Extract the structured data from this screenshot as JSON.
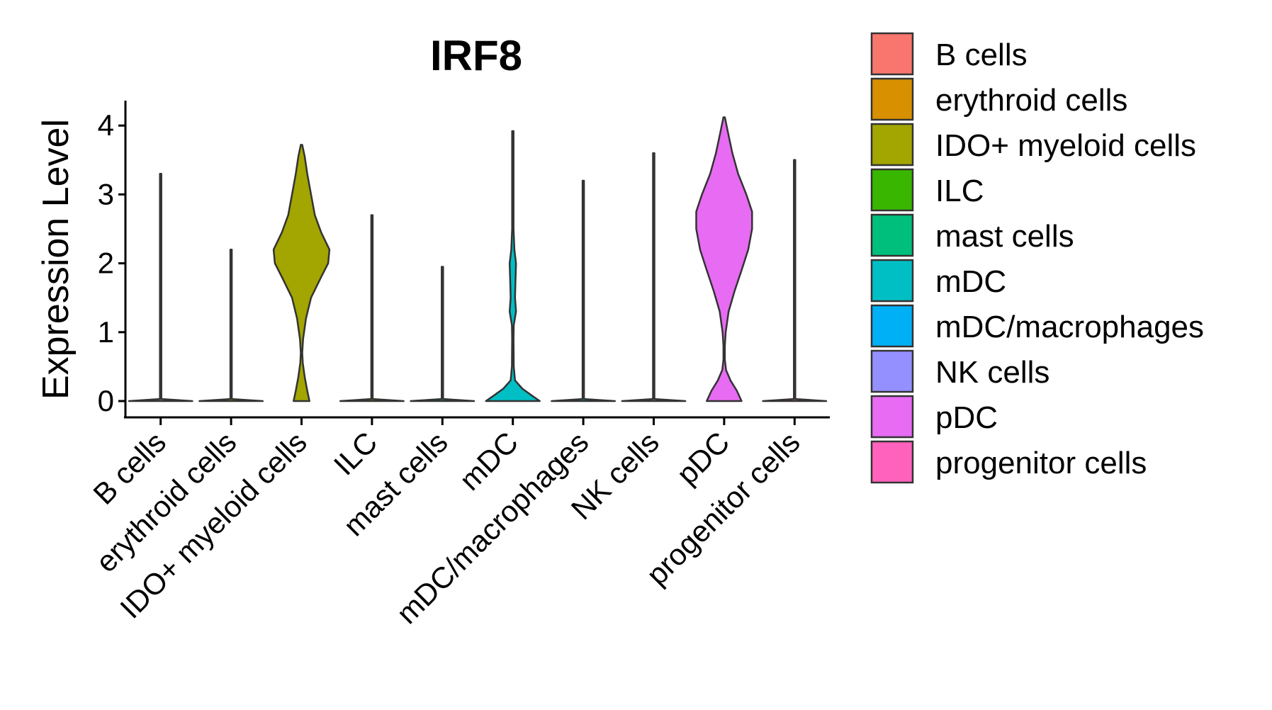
{
  "chart_data": {
    "type": "violin",
    "title": "IRF8",
    "xlabel": "",
    "ylabel": "Expression Level",
    "ylim": [
      -0.15,
      4.35
    ],
    "yticks": [
      0,
      1,
      2,
      3,
      4
    ],
    "grid": false,
    "legend_position": "right",
    "categories": [
      "B cells",
      "erythroid cells",
      "IDO+ myeloid cells",
      "ILC",
      "mast cells",
      "mDC",
      "mDC/macrophages",
      "NK cells",
      "pDC",
      "progenitor cells"
    ],
    "colors": {
      "B cells": "#F8766D",
      "erythroid cells": "#D89000",
      "IDO+ myeloid cells": "#A3A500",
      "ILC": "#39B600",
      "mast cells": "#00BF7D",
      "mDC": "#00BFC4",
      "mDC/macrophages": "#00B0F6",
      "NK cells": "#9590FF",
      "pDC": "#E76BF3",
      "progenitor cells": "#FF62BC"
    },
    "series": [
      {
        "name": "B cells",
        "max": 3.3,
        "profile": [
          [
            0,
            1
          ],
          [
            0.03,
            0.02
          ],
          [
            3.3,
            0.02
          ]
        ]
      },
      {
        "name": "erythroid cells",
        "max": 2.2,
        "profile": [
          [
            0,
            1
          ],
          [
            0.03,
            0.02
          ],
          [
            2.2,
            0.02
          ]
        ]
      },
      {
        "name": "IDO+ myeloid cells",
        "max": 3.72,
        "profile": [
          [
            0,
            0.25
          ],
          [
            0.15,
            0.18
          ],
          [
            0.35,
            0.1
          ],
          [
            0.55,
            0.04
          ],
          [
            0.7,
            0.02
          ],
          [
            0.9,
            0.05
          ],
          [
            1.2,
            0.14
          ],
          [
            1.5,
            0.3
          ],
          [
            1.8,
            0.62
          ],
          [
            2.0,
            0.84
          ],
          [
            2.2,
            0.88
          ],
          [
            2.45,
            0.62
          ],
          [
            2.7,
            0.42
          ],
          [
            3.0,
            0.3
          ],
          [
            3.3,
            0.18
          ],
          [
            3.55,
            0.1
          ],
          [
            3.72,
            0.02
          ]
        ]
      },
      {
        "name": "ILC",
        "max": 2.7,
        "profile": [
          [
            0,
            1
          ],
          [
            0.03,
            0.02
          ],
          [
            2.7,
            0.02
          ]
        ]
      },
      {
        "name": "mast cells",
        "max": 1.95,
        "profile": [
          [
            0,
            1
          ],
          [
            0.03,
            0.02
          ],
          [
            1.95,
            0.02
          ]
        ]
      },
      {
        "name": "mDC",
        "max": 3.92,
        "profile": [
          [
            0,
            0.85
          ],
          [
            0.08,
            0.6
          ],
          [
            0.18,
            0.3
          ],
          [
            0.3,
            0.07
          ],
          [
            0.5,
            0.03
          ],
          [
            0.9,
            0.02
          ],
          [
            1.1,
            0.03
          ],
          [
            1.3,
            0.1
          ],
          [
            1.5,
            0.07
          ],
          [
            1.7,
            0.08
          ],
          [
            2.0,
            0.1
          ],
          [
            2.2,
            0.05
          ],
          [
            2.5,
            0.02
          ],
          [
            3.0,
            0.02
          ],
          [
            3.92,
            0.02
          ]
        ]
      },
      {
        "name": "mDC/macrophages",
        "max": 3.2,
        "profile": [
          [
            0,
            1
          ],
          [
            0.03,
            0.02
          ],
          [
            3.2,
            0.02
          ]
        ]
      },
      {
        "name": "NK cells",
        "max": 3.6,
        "profile": [
          [
            0,
            1
          ],
          [
            0.03,
            0.02
          ],
          [
            3.6,
            0.02
          ]
        ]
      },
      {
        "name": "pDC",
        "max": 4.12,
        "profile": [
          [
            0,
            0.55
          ],
          [
            0.15,
            0.4
          ],
          [
            0.3,
            0.2
          ],
          [
            0.45,
            0.06
          ],
          [
            0.6,
            0.02
          ],
          [
            0.8,
            0.02
          ],
          [
            1.0,
            0.05
          ],
          [
            1.3,
            0.14
          ],
          [
            1.6,
            0.33
          ],
          [
            1.9,
            0.55
          ],
          [
            2.2,
            0.76
          ],
          [
            2.5,
            0.88
          ],
          [
            2.75,
            0.88
          ],
          [
            3.0,
            0.7
          ],
          [
            3.3,
            0.44
          ],
          [
            3.6,
            0.26
          ],
          [
            3.9,
            0.12
          ],
          [
            4.12,
            0.02
          ]
        ]
      },
      {
        "name": "progenitor cells",
        "max": 3.5,
        "profile": [
          [
            0,
            1
          ],
          [
            0.03,
            0.02
          ],
          [
            3.5,
            0.02
          ]
        ]
      }
    ]
  }
}
